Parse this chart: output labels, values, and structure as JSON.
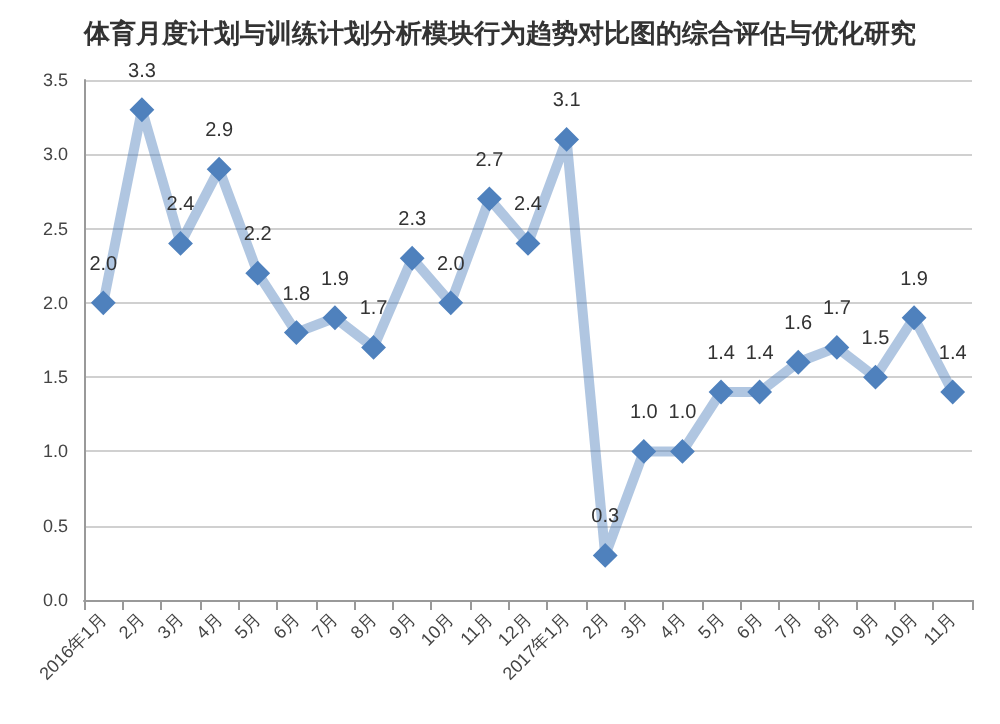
{
  "chart_data": {
    "type": "line",
    "title": "体育月度计划与训练计划分析模块行为趋势对比图的综合评估与优化研究",
    "categories": [
      "2016年1月",
      "2月",
      "3月",
      "4月",
      "5月",
      "6月",
      "7月",
      "8月",
      "9月",
      "10月",
      "11月",
      "12月",
      "2017年1月",
      "2月",
      "3月",
      "4月",
      "5月",
      "6月",
      "7月",
      "8月",
      "9月",
      "10月",
      "11月"
    ],
    "series": [
      {
        "color": "#4f81bd",
        "values": [
          2.0,
          3.3,
          2.4,
          2.9,
          2.2,
          1.8,
          1.9,
          1.7,
          2.3,
          2.0,
          2.7,
          2.4,
          3.1,
          0.3,
          1.0,
          1.0,
          1.4,
          1.4,
          1.6,
          1.7,
          1.5,
          1.9,
          1.4
        ],
        "value_labels": [
          "2.0",
          "3.3",
          "2.4",
          "2.9",
          "2.2",
          "1.8",
          "1.9",
          "1.7",
          "2.3",
          "2.0",
          "2.7",
          "2.4",
          "3.1",
          "0.3",
          "1.0",
          "1.0",
          "1.4",
          "1.4",
          "1.6",
          "1.7",
          "1.5",
          "1.9",
          "1.4"
        ]
      }
    ],
    "ylim": [
      0,
      3.5
    ],
    "yticks": [
      {
        "value": 0,
        "label": "0.0"
      },
      {
        "value": 0.5,
        "label": "0.5"
      },
      {
        "value": 1,
        "label": "1.0"
      },
      {
        "value": 1.5,
        "label": "1.5"
      },
      {
        "value": 2,
        "label": "2.0"
      },
      {
        "value": 2.5,
        "label": "2.5"
      },
      {
        "value": 3,
        "label": "3.0"
      },
      {
        "value": 3.5,
        "label": "3.5"
      }
    ],
    "grid": "y",
    "marker": "diamond",
    "line_style": "solid"
  }
}
